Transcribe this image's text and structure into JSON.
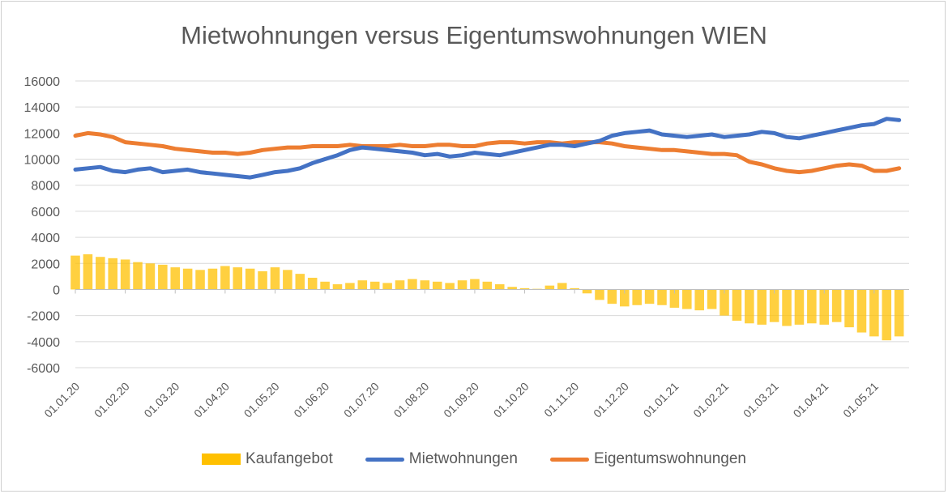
{
  "colors": {
    "kaufangebot": "#ffc000",
    "mietwohnungen": "#4472c4",
    "eigentumswohnungen": "#ed7d31",
    "grid": "#d9d9d9",
    "text": "#595959"
  },
  "chart_data": {
    "type": "line",
    "title": "Mietwohnungen versus Eigentumswohnungen WIEN",
    "xlabel": "",
    "ylabel": "",
    "ylim": [
      -6000,
      16000
    ],
    "yticks": [
      "16000",
      "14000",
      "12000",
      "10000",
      "8000",
      "6000",
      "4000",
      "2000",
      "0",
      "-2000",
      "-4000",
      "-6000"
    ],
    "categories": [
      "01.01.20",
      "01.02.20",
      "01.03.20",
      "01.04.20",
      "01.05.20",
      "01.06.20",
      "01.07.20",
      "01.08.20",
      "01.09.20",
      "01.10.20",
      "01.11.20",
      "01.12.20",
      "01.01.21",
      "01.02.21",
      "01.03.21",
      "01.04.21",
      "01.05.21"
    ],
    "grid": true,
    "legend_position": "bottom",
    "series": [
      {
        "name": "Kaufangebot",
        "kind": "bar",
        "color": "#ffc000",
        "x": [
          0,
          0.25,
          0.5,
          0.75,
          1,
          1.25,
          1.5,
          1.75,
          2,
          2.25,
          2.5,
          2.75,
          3,
          3.25,
          3.5,
          3.75,
          4,
          4.25,
          4.5,
          4.75,
          5,
          5.25,
          5.5,
          5.75,
          6,
          6.25,
          6.5,
          6.75,
          7,
          7.25,
          7.5,
          7.75,
          8,
          8.25,
          8.5,
          8.75,
          9,
          9.25,
          9.5,
          9.75,
          10,
          10.25,
          10.5,
          10.75,
          11,
          11.25,
          11.5,
          11.75,
          12,
          12.25,
          12.5,
          12.75,
          13,
          13.25,
          13.5,
          13.75,
          14,
          14.25,
          14.5,
          14.75,
          15,
          15.25,
          15.5,
          15.75,
          16,
          16.25,
          16.5
        ],
        "values": [
          2600,
          2700,
          2500,
          2400,
          2300,
          2100,
          2000,
          1900,
          1700,
          1600,
          1500,
          1600,
          1800,
          1700,
          1600,
          1400,
          1700,
          1500,
          1200,
          900,
          600,
          400,
          500,
          700,
          600,
          500,
          700,
          800,
          700,
          600,
          500,
          700,
          800,
          600,
          400,
          200,
          100,
          50,
          300,
          500,
          100,
          -300,
          -800,
          -1100,
          -1300,
          -1200,
          -1100,
          -1200,
          -1400,
          -1500,
          -1600,
          -1500,
          -2000,
          -2400,
          -2600,
          -2700,
          -2500,
          -2800,
          -2700,
          -2600,
          -2700,
          -2500,
          -2900,
          -3300,
          -3600,
          -3900,
          -3600
        ]
      },
      {
        "name": "Mietwohnungen",
        "kind": "line",
        "color": "#4472c4",
        "x": [
          0,
          0.25,
          0.5,
          0.75,
          1,
          1.25,
          1.5,
          1.75,
          2,
          2.25,
          2.5,
          2.75,
          3,
          3.25,
          3.5,
          3.75,
          4,
          4.25,
          4.5,
          4.75,
          5,
          5.25,
          5.5,
          5.75,
          6,
          6.25,
          6.5,
          6.75,
          7,
          7.25,
          7.5,
          7.75,
          8,
          8.25,
          8.5,
          8.75,
          9,
          9.25,
          9.5,
          9.75,
          10,
          10.25,
          10.5,
          10.75,
          11,
          11.25,
          11.5,
          11.75,
          12,
          12.25,
          12.5,
          12.75,
          13,
          13.25,
          13.5,
          13.75,
          14,
          14.25,
          14.5,
          14.75,
          15,
          15.25,
          15.5,
          15.75,
          16,
          16.25,
          16.5
        ],
        "values": [
          9200,
          9300,
          9400,
          9100,
          9000,
          9200,
          9300,
          9000,
          9100,
          9200,
          9000,
          8900,
          8800,
          8700,
          8600,
          8800,
          9000,
          9100,
          9300,
          9700,
          10000,
          10300,
          10700,
          10900,
          10800,
          10700,
          10600,
          10500,
          10300,
          10400,
          10200,
          10300,
          10500,
          10400,
          10300,
          10500,
          10700,
          10900,
          11100,
          11100,
          11000,
          11200,
          11400,
          11800,
          12000,
          12100,
          12200,
          11900,
          11800,
          11700,
          11800,
          11900,
          11700,
          11800,
          11900,
          12100,
          12000,
          11700,
          11600,
          11800,
          12000,
          12200,
          12400,
          12600,
          12700,
          13100,
          13000
        ]
      },
      {
        "name": "Eigentumswohnungen",
        "kind": "line",
        "color": "#ed7d31",
        "x": [
          0,
          0.25,
          0.5,
          0.75,
          1,
          1.25,
          1.5,
          1.75,
          2,
          2.25,
          2.5,
          2.75,
          3,
          3.25,
          3.5,
          3.75,
          4,
          4.25,
          4.5,
          4.75,
          5,
          5.25,
          5.5,
          5.75,
          6,
          6.25,
          6.5,
          6.75,
          7,
          7.25,
          7.5,
          7.75,
          8,
          8.25,
          8.5,
          8.75,
          9,
          9.25,
          9.5,
          9.75,
          10,
          10.25,
          10.5,
          10.75,
          11,
          11.25,
          11.5,
          11.75,
          12,
          12.25,
          12.5,
          12.75,
          13,
          13.25,
          13.5,
          13.75,
          14,
          14.25,
          14.5,
          14.75,
          15,
          15.25,
          15.5,
          15.75,
          16,
          16.25,
          16.5
        ],
        "values": [
          11800,
          12000,
          11900,
          11700,
          11300,
          11200,
          11100,
          11000,
          10800,
          10700,
          10600,
          10500,
          10500,
          10400,
          10500,
          10700,
          10800,
          10900,
          10900,
          11000,
          11000,
          11000,
          11100,
          11000,
          11000,
          11000,
          11100,
          11000,
          11000,
          11100,
          11100,
          11000,
          11000,
          11200,
          11300,
          11300,
          11200,
          11300,
          11300,
          11200,
          11300,
          11300,
          11300,
          11200,
          11000,
          10900,
          10800,
          10700,
          10700,
          10600,
          10500,
          10400,
          10400,
          10300,
          9800,
          9600,
          9300,
          9100,
          9000,
          9100,
          9300,
          9500,
          9600,
          9500,
          9100,
          9100,
          9300
        ]
      }
    ]
  }
}
